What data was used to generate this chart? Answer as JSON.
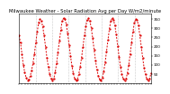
{
  "title": "Milwaukee Weather - Solar Radiation Avg per Day W/m2/minute",
  "line_color": "#dd0000",
  "line_style": "--",
  "line_width": 0.7,
  "marker": ".",
  "marker_size": 1.2,
  "bg_color": "#ffffff",
  "grid_color": "#999999",
  "ylim": [
    0,
    380
  ],
  "yticks": [
    50,
    100,
    150,
    200,
    250,
    300,
    350
  ],
  "ylabel_fontsize": 3.0,
  "title_fontsize": 3.8,
  "values": [
    260,
    220,
    160,
    100,
    60,
    30,
    15,
    20,
    40,
    70,
    110,
    160,
    220,
    280,
    330,
    350,
    340,
    310,
    260,
    200,
    140,
    90,
    50,
    25,
    15,
    25,
    60,
    110,
    170,
    230,
    290,
    340,
    355,
    350,
    320,
    270,
    210,
    150,
    95,
    55,
    25,
    15,
    20,
    50,
    90,
    140,
    200,
    260,
    310,
    345,
    355,
    340,
    300,
    245,
    185,
    125,
    75,
    40,
    20,
    15,
    30,
    65,
    115,
    175,
    235,
    295,
    340,
    355,
    345,
    315,
    265,
    205,
    145,
    90,
    50,
    22,
    15,
    22,
    55,
    100,
    160,
    220,
    280,
    330,
    350,
    345,
    315,
    260,
    200,
    140,
    85,
    48,
    22,
    14,
    22,
    55
  ],
  "n_gridlines": 7,
  "n_xticks": 48
}
